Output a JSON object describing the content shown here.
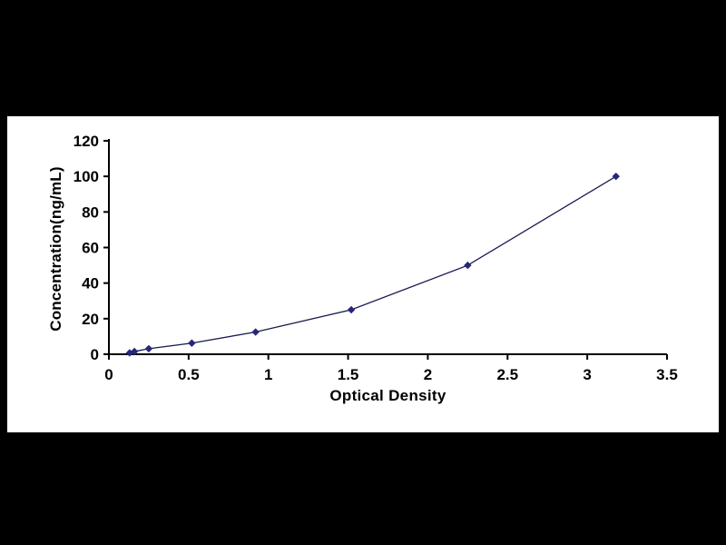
{
  "page": {
    "background": "#000000",
    "panel_background": "#ffffff"
  },
  "chart_data": {
    "type": "line",
    "title": "",
    "xlabel": "Optical Density",
    "ylabel": "Concentration(ng/mL)",
    "x": [
      0.13,
      0.16,
      0.25,
      0.52,
      0.92,
      1.52,
      2.25,
      3.18
    ],
    "y": [
      0.78,
      1.56,
      3.12,
      6.25,
      12.5,
      25,
      50,
      100
    ],
    "xlim": [
      0,
      3.5
    ],
    "ylim": [
      0,
      120
    ],
    "xtick_values": [
      0,
      0.5,
      1,
      1.5,
      2,
      2.5,
      3,
      3.5
    ],
    "ytick_values": [
      0,
      20,
      40,
      60,
      80,
      100,
      120
    ],
    "grid": false,
    "legend": "none",
    "axis_color": "#000000",
    "line_color": "#1b1b52",
    "marker": "diamond",
    "marker_color": "#26267a"
  }
}
